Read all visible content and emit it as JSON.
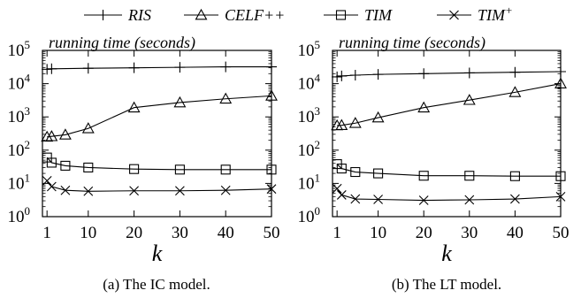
{
  "legend": {
    "placement": "top",
    "entries": [
      {
        "label": "RIS",
        "marker": "plus"
      },
      {
        "label": "CELF++",
        "marker": "triangle"
      },
      {
        "label": "TIM",
        "marker": "square"
      },
      {
        "label": "TIM",
        "sup": "+",
        "marker": "cross"
      }
    ]
  },
  "chart_data": [
    {
      "type": "line",
      "title": "running time (seconds)",
      "xlabel": "k",
      "ylabel": "",
      "caption": "(a) The IC model.",
      "yscale": "log",
      "ylim": [
        1,
        100000
      ],
      "xlim": [
        0,
        50
      ],
      "xticks": [
        "1",
        "10",
        "20",
        "30",
        "40",
        "50"
      ],
      "yticks": [
        {
          "base": "10",
          "exp": "0"
        },
        {
          "base": "10",
          "exp": "1"
        },
        {
          "base": "10",
          "exp": "2"
        },
        {
          "base": "10",
          "exp": "3"
        },
        {
          "base": "10",
          "exp": "4"
        },
        {
          "base": "10",
          "exp": "5"
        }
      ],
      "grid": false,
      "x": [
        1,
        2,
        5,
        10,
        20,
        30,
        40,
        50
      ],
      "series": [
        {
          "name": "RIS",
          "marker": "plus",
          "x": [
            1,
            2,
            10,
            20,
            30,
            40,
            50
          ],
          "values": [
            27000,
            28000,
            29000,
            30000,
            31000,
            32000,
            32000
          ]
        },
        {
          "name": "CELF++",
          "marker": "triangle",
          "x": [
            1,
            2,
            5,
            10,
            20,
            30,
            40,
            50
          ],
          "values": [
            250,
            260,
            290,
            450,
            1900,
            2700,
            3500,
            4300
          ]
        },
        {
          "name": "TIM",
          "marker": "square",
          "x": [
            1,
            2,
            5,
            10,
            20,
            30,
            40,
            50
          ],
          "values": [
            60,
            42,
            34,
            30,
            27,
            26,
            26,
            26
          ]
        },
        {
          "name": "TIM+",
          "marker": "cross",
          "x": [
            1,
            2,
            5,
            10,
            20,
            30,
            40,
            50
          ],
          "values": [
            12,
            8,
            6.2,
            5.8,
            6,
            6,
            6.2,
            6.8
          ]
        }
      ]
    },
    {
      "type": "line",
      "title": "running time (seconds)",
      "xlabel": "k",
      "ylabel": "",
      "caption": "(b) The LT model.",
      "yscale": "log",
      "ylim": [
        1,
        100000
      ],
      "xlim": [
        0,
        50
      ],
      "xticks": [
        "1",
        "10",
        "20",
        "30",
        "40",
        "50"
      ],
      "yticks": [
        {
          "base": "10",
          "exp": "0"
        },
        {
          "base": "10",
          "exp": "1"
        },
        {
          "base": "10",
          "exp": "2"
        },
        {
          "base": "10",
          "exp": "3"
        },
        {
          "base": "10",
          "exp": "4"
        },
        {
          "base": "10",
          "exp": "5"
        }
      ],
      "grid": false,
      "x": [
        1,
        2,
        5,
        10,
        20,
        30,
        40,
        50
      ],
      "series": [
        {
          "name": "RIS",
          "marker": "plus",
          "x": [
            1,
            2,
            5,
            10,
            20,
            30,
            40,
            50
          ],
          "values": [
            16000,
            17000,
            18000,
            19000,
            20000,
            21000,
            22000,
            23000
          ]
        },
        {
          "name": "CELF++",
          "marker": "triangle",
          "x": [
            1,
            2,
            5,
            10,
            20,
            30,
            40,
            50
          ],
          "values": [
            550,
            560,
            650,
            950,
            1900,
            3200,
            5500,
            10000
          ]
        },
        {
          "name": "TIM",
          "marker": "square",
          "x": [
            1,
            2,
            5,
            10,
            20,
            30,
            40,
            50
          ],
          "values": [
            38,
            28,
            22,
            20,
            17,
            17,
            16.5,
            16.5
          ]
        },
        {
          "name": "TIM+",
          "marker": "cross",
          "x": [
            1,
            2,
            5,
            10,
            20,
            30,
            40,
            50
          ],
          "values": [
            7,
            4.5,
            3.4,
            3.3,
            3.1,
            3.2,
            3.4,
            4
          ]
        }
      ]
    }
  ]
}
